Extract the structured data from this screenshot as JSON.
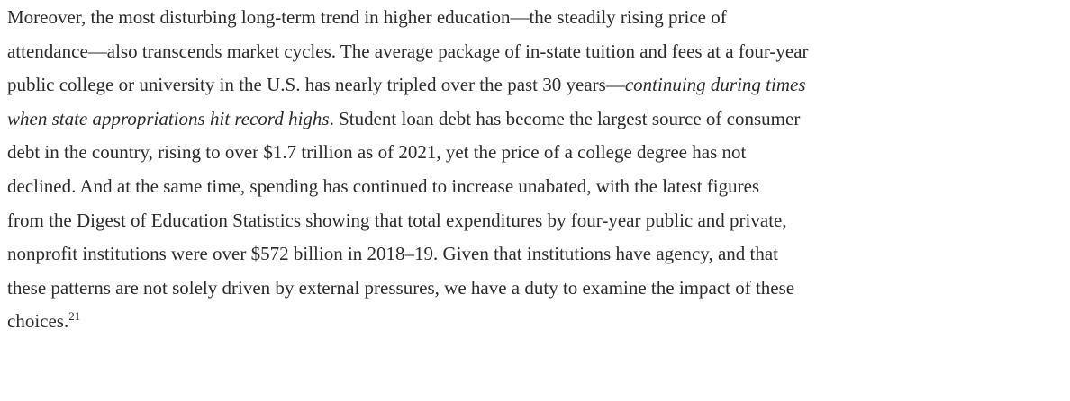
{
  "paragraph": {
    "lines": [
      [
        {
          "text": "Moreover, the most disturbing long-term trend in higher education—the steadily rising price of"
        }
      ],
      [
        {
          "text": "attendance—also transcends market cycles. The average package of in-state tuition and fees at a four-year"
        }
      ],
      [
        {
          "text": "public college or university in the U.S. has nearly tripled over the past 30 years—"
        },
        {
          "text": "continuing during times",
          "italic": true
        }
      ],
      [
        {
          "text": "when state appropriations hit record highs",
          "italic": true
        },
        {
          "text": ". Student loan debt has become the largest source of consumer"
        }
      ],
      [
        {
          "text": "debt in the country, rising to over $1.7 trillion as of 2021, yet the price of a college degree has not"
        }
      ],
      [
        {
          "text": "declined. And at the same time, spending has continued to increase unabated, with the latest figures"
        }
      ],
      [
        {
          "text": "from the Digest of Education Statistics showing that total expenditures by four-year public and private,"
        }
      ],
      [
        {
          "text": "nonprofit institutions were over $572 billion in 2018–19. Given that institutions have agency, and that"
        }
      ],
      [
        {
          "text": "these patterns are not solely driven by external pressures, we have a duty to examine the impact of these"
        }
      ],
      [
        {
          "text": "choices."
        },
        {
          "text": "21",
          "superscript": true
        }
      ]
    ]
  }
}
